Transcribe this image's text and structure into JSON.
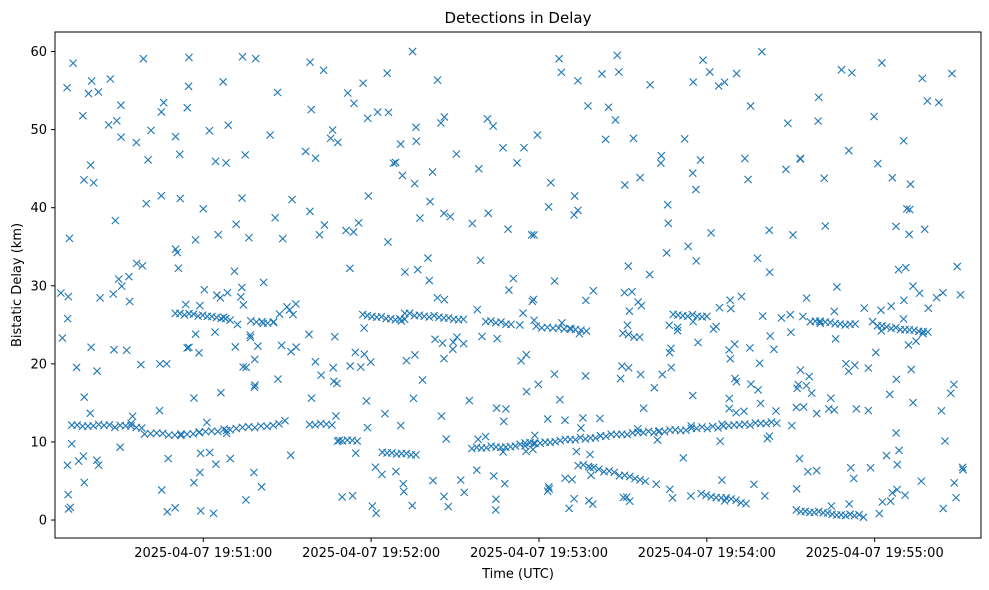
{
  "chart_data": {
    "type": "scatter",
    "title": "Detections in Delay",
    "xlabel": "Time (UTC)",
    "ylabel": "Bistatic Delay (km)",
    "marker": "x",
    "color": "#1f77b4",
    "grid": false,
    "x_tick_labels": [
      "2025-04-07 19:51:00",
      "2025-04-07 19:52:00",
      "2025-04-07 19:53:00",
      "2025-04-07 19:54:00",
      "2025-04-07 19:55:00"
    ],
    "y_ticks": [
      0,
      10,
      20,
      30,
      40,
      50,
      60
    ],
    "xlim": [
      "2025-04-07 19:50:07",
      "2025-04-07 19:55:38"
    ],
    "ylim": [
      -2.3,
      62.5
    ],
    "series": [
      {
        "tracks": [
          {
            "x_start": "2025-04-07 19:50:13",
            "x_end": "2025-04-07 19:50:38",
            "y_start": 12.2,
            "y_end": 11.9,
            "n": 14
          },
          {
            "x_start": "2025-04-07 19:50:39",
            "x_end": "2025-04-07 19:50:52",
            "y_start": 11.1,
            "y_end": 10.9,
            "n": 7
          },
          {
            "x_start": "2025-04-07 19:50:52",
            "x_end": "2025-04-07 19:51:25",
            "y_start": 11.0,
            "y_end": 12.1,
            "n": 16
          },
          {
            "x_start": "2025-04-07 19:51:38",
            "x_end": "2025-04-07 19:51:46",
            "y_start": 12.3,
            "y_end": 12.2,
            "n": 5
          },
          {
            "x_start": "2025-04-07 19:51:48",
            "x_end": "2025-04-07 19:51:55",
            "y_start": 10.1,
            "y_end": 10.1,
            "n": 5
          },
          {
            "x_start": "2025-04-07 19:52:04",
            "x_end": "2025-04-07 19:52:16",
            "y_start": 8.6,
            "y_end": 8.3,
            "n": 8
          },
          {
            "x_start": "2025-04-07 19:52:36",
            "x_end": "2025-04-07 19:52:55",
            "y_start": 9.2,
            "y_end": 9.6,
            "n": 12
          },
          {
            "x_start": "2025-04-07 19:52:55",
            "x_end": "2025-04-07 19:53:22",
            "y_start": 9.8,
            "y_end": 10.7,
            "n": 16
          },
          {
            "x_start": "2025-04-07 19:53:22",
            "x_end": "2025-04-07 19:54:25",
            "y_start": 10.8,
            "y_end": 12.5,
            "n": 34
          },
          {
            "x_start": "2025-04-07 19:53:14",
            "x_end": "2025-04-07 19:53:38",
            "y_start": 7.1,
            "y_end": 5.0,
            "n": 14
          },
          {
            "x_start": "2025-04-07 19:53:58",
            "x_end": "2025-04-07 19:54:14",
            "y_start": 3.3,
            "y_end": 2.2,
            "n": 10
          },
          {
            "x_start": "2025-04-07 19:54:32",
            "x_end": "2025-04-07 19:54:56",
            "y_start": 1.2,
            "y_end": 0.5,
            "n": 16
          },
          {
            "x_start": "2025-04-07 19:50:50",
            "x_end": "2025-04-07 19:51:08",
            "y_start": 26.5,
            "y_end": 25.9,
            "n": 12
          },
          {
            "x_start": "2025-04-07 19:51:17",
            "x_end": "2025-04-07 19:51:25",
            "y_start": 25.5,
            "y_end": 25.3,
            "n": 5
          },
          {
            "x_start": "2025-04-07 19:51:57",
            "x_end": "2025-04-07 19:52:12",
            "y_start": 26.3,
            "y_end": 25.6,
            "n": 10
          },
          {
            "x_start": "2025-04-07 19:52:12",
            "x_end": "2025-04-07 19:52:33",
            "y_start": 26.4,
            "y_end": 25.7,
            "n": 13
          },
          {
            "x_start": "2025-04-07 19:52:41",
            "x_end": "2025-04-07 19:52:50",
            "y_start": 25.4,
            "y_end": 25.1,
            "n": 6
          },
          {
            "x_start": "2025-04-07 19:52:59",
            "x_end": "2025-04-07 19:53:17",
            "y_start": 24.8,
            "y_end": 24.3,
            "n": 10
          },
          {
            "x_start": "2025-04-07 19:53:30",
            "x_end": "2025-04-07 19:53:36",
            "y_start": 23.8,
            "y_end": 23.4,
            "n": 4
          },
          {
            "x_start": "2025-04-07 19:53:48",
            "x_end": "2025-04-07 19:54:00",
            "y_start": 26.4,
            "y_end": 26.0,
            "n": 8
          },
          {
            "x_start": "2025-04-07 19:54:37",
            "x_end": "2025-04-07 19:54:53",
            "y_start": 25.4,
            "y_end": 25.0,
            "n": 10
          },
          {
            "x_start": "2025-04-07 19:55:01",
            "x_end": "2025-04-07 19:55:19",
            "y_start": 24.8,
            "y_end": 24.0,
            "n": 12
          }
        ],
        "scattered": {
          "n": 540,
          "x_start": "2025-04-07 19:50:09",
          "x_end": "2025-04-07 19:55:32",
          "y_min": 0.5,
          "y_max": 60.0,
          "bands": [
            {
              "y_from": 0.5,
              "y_to": 19.0,
              "share": 0.36
            },
            {
              "y_from": 19.0,
              "y_to": 30.0,
              "share": 0.28
            },
            {
              "y_from": 30.0,
              "y_to": 60.0,
              "share": 0.36
            }
          ]
        }
      }
    ]
  }
}
